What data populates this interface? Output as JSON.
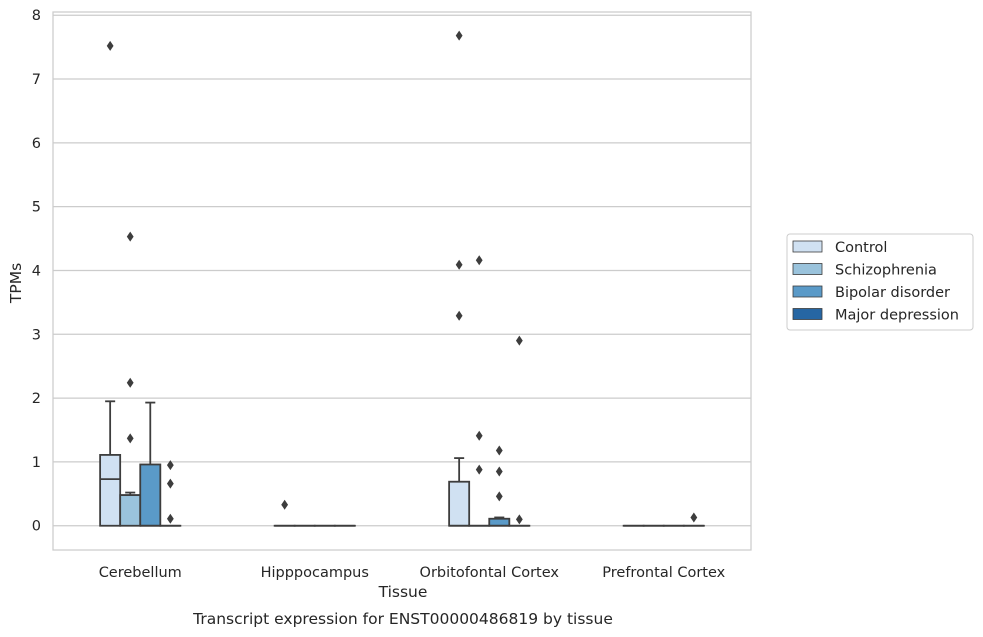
{
  "chart_data": {
    "type": "box",
    "title": "Transcript expression for ENST00000486819 by tissue",
    "xlabel": "Tissue",
    "ylabel": "TPMs",
    "ylim": [
      -0.38,
      8.05
    ],
    "yticks": [
      0,
      1,
      2,
      3,
      4,
      5,
      6,
      7,
      8
    ],
    "categories": [
      "Cerebellum",
      "Hipppocampus",
      "Orbitofontal Cortex",
      "Prefrontal Cortex"
    ],
    "grid": true,
    "legend_position": "right",
    "series": [
      {
        "name": "Control",
        "color": "#d0e1f2",
        "boxes": [
          {
            "q1": 0,
            "median": 0.73,
            "q3": 1.11,
            "whisker_low": 0,
            "whisker_high": 1.95,
            "outliers": [
              7.52
            ]
          },
          {
            "q1": 0,
            "median": 0,
            "q3": 0,
            "whisker_low": 0,
            "whisker_high": 0,
            "outliers": [
              0.33
            ]
          },
          {
            "q1": 0,
            "median": 0,
            "q3": 0.69,
            "whisker_low": 0,
            "whisker_high": 1.06,
            "outliers": [
              7.68,
              4.09,
              3.29
            ]
          },
          {
            "q1": 0,
            "median": 0,
            "q3": 0,
            "whisker_low": 0,
            "whisker_high": 0,
            "outliers": []
          }
        ]
      },
      {
        "name": "Schizophrenia",
        "color": "#9ac3dc",
        "boxes": [
          {
            "q1": 0,
            "median": 0.48,
            "q3": 0.48,
            "whisker_low": 0,
            "whisker_high": 0.52,
            "outliers": [
              4.53,
              2.24,
              1.37
            ]
          },
          {
            "q1": 0,
            "median": 0,
            "q3": 0,
            "whisker_low": 0,
            "whisker_high": 0,
            "outliers": []
          },
          {
            "q1": 0,
            "median": 0,
            "q3": 0,
            "whisker_low": 0,
            "whisker_high": 0,
            "outliers": [
              4.16,
              1.41,
              0.88
            ]
          },
          {
            "q1": 0,
            "median": 0,
            "q3": 0,
            "whisker_low": 0,
            "whisker_high": 0,
            "outliers": []
          }
        ]
      },
      {
        "name": "Bipolar disorder",
        "color": "#5a9ac8",
        "boxes": [
          {
            "q1": 0,
            "median": 0,
            "q3": 0.96,
            "whisker_low": 0,
            "whisker_high": 1.93,
            "outliers": []
          },
          {
            "q1": 0,
            "median": 0,
            "q3": 0,
            "whisker_low": 0,
            "whisker_high": 0,
            "outliers": []
          },
          {
            "q1": 0,
            "median": 0,
            "q3": 0.11,
            "whisker_low": 0,
            "whisker_high": 0.13,
            "outliers": [
              1.18,
              0.85,
              0.46
            ]
          },
          {
            "q1": 0,
            "median": 0,
            "q3": 0,
            "whisker_low": 0,
            "whisker_high": 0,
            "outliers": []
          }
        ]
      },
      {
        "name": "Major depression",
        "color": "#2666a3",
        "boxes": [
          {
            "q1": 0,
            "median": 0,
            "q3": 0,
            "whisker_low": 0,
            "whisker_high": 0,
            "outliers": [
              0.95,
              0.66,
              0.11
            ]
          },
          {
            "q1": 0,
            "median": 0,
            "q3": 0,
            "whisker_low": 0,
            "whisker_high": 0,
            "outliers": []
          },
          {
            "q1": 0,
            "median": 0,
            "q3": 0,
            "whisker_low": 0,
            "whisker_high": 0,
            "outliers": [
              2.9,
              0.1
            ]
          },
          {
            "q1": 0,
            "median": 0,
            "q3": 0,
            "whisker_low": 0,
            "whisker_high": 0,
            "outliers": [
              0.13
            ]
          }
        ]
      }
    ]
  }
}
